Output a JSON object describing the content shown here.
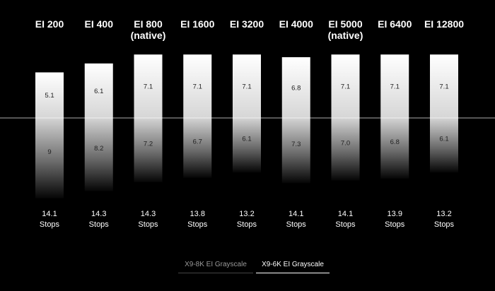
{
  "chart_data": {
    "type": "bar",
    "categories": [
      [
        "EI 200"
      ],
      [
        "EI 400"
      ],
      [
        "EI 800",
        "(native)"
      ],
      [
        "EI 1600"
      ],
      [
        "EI 3200"
      ],
      [
        "EI 4000"
      ],
      [
        "EI 5000",
        "(native)"
      ],
      [
        "EI 6400"
      ],
      [
        "EI 12800"
      ]
    ],
    "series": [
      {
        "values": [
          5.1,
          6.1,
          7.1,
          7.1,
          7.1,
          6.8,
          7.1,
          7.1,
          7.1
        ]
      },
      {
        "values": [
          9,
          8.2,
          7.2,
          6.7,
          6.1,
          7.3,
          7.0,
          6.8,
          6.1
        ]
      }
    ],
    "value_labels": {
      "above": [
        "5.1",
        "6.1",
        "7.1",
        "7.1",
        "7.1",
        "6.8",
        "7.1",
        "7.1",
        "7.1"
      ],
      "below": [
        "9",
        "8.2",
        "7.2",
        "6.7",
        "6.1",
        "7.3",
        "7.0",
        "6.8",
        "6.1"
      ]
    },
    "totals": [
      [
        "14.1",
        "Stops"
      ],
      [
        "14.3",
        "Stops"
      ],
      [
        "14.3",
        "Stops"
      ],
      [
        "13.8",
        "Stops"
      ],
      [
        "13.2",
        "Stops"
      ],
      [
        "14.1",
        "Stops"
      ],
      [
        "14.1",
        "Stops"
      ],
      [
        "13.9",
        "Stops"
      ],
      [
        "13.2",
        "Stops"
      ]
    ],
    "title": "",
    "xlabel": "",
    "ylabel": "",
    "grid": false,
    "colors": {
      "background": "#000000",
      "bar_light": "#ffffff",
      "bar_dark": "#000000",
      "baseline": "#ffffff"
    }
  },
  "legend": {
    "items": [
      {
        "label": "X9-8K EI Grayscale",
        "active": false
      },
      {
        "label": "X9-6K EI Grayscale",
        "active": true
      }
    ]
  }
}
